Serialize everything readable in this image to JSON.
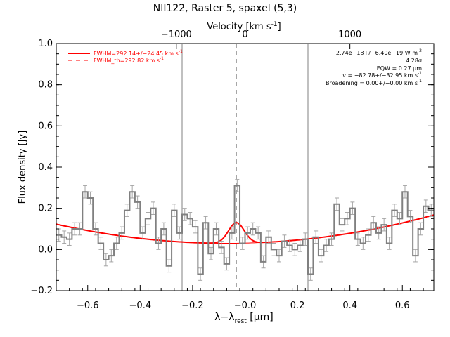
{
  "chart_data": {
    "type": "line",
    "title": "NII122, Raster 5, spaxel (5,3)",
    "xlabel_main": "λ−λ",
    "xlabel_sub": "rest",
    "xlabel_unit": " [μm]",
    "ylabel": "Flux density [Jy]",
    "top_axis_label": "Velocity [km s",
    "top_axis_sup": "-1",
    "top_axis_close": "]",
    "xlim": [
      -0.72,
      0.72
    ],
    "ylim": [
      -0.2,
      1.0
    ],
    "x_ticks": [
      {
        "value": -0.6,
        "label": "−0.6"
      },
      {
        "value": -0.4,
        "label": "−0.4"
      },
      {
        "value": -0.2,
        "label": "−0.2"
      },
      {
        "value": 0.0,
        "label": "−0.0"
      },
      {
        "value": 0.2,
        "label": "0.2"
      },
      {
        "value": 0.4,
        "label": "0.4"
      },
      {
        "value": 0.6,
        "label": "0.6"
      }
    ],
    "y_ticks": [
      {
        "value": -0.2,
        "label": "−0.2"
      },
      {
        "value": 0.0,
        "label": "0.0"
      },
      {
        "value": 0.2,
        "label": "0.2"
      },
      {
        "value": 0.4,
        "label": "0.4"
      },
      {
        "value": 0.6,
        "label": "0.6"
      },
      {
        "value": 0.8,
        "label": "0.8"
      },
      {
        "value": 1.0,
        "label": "1.0"
      }
    ],
    "top_ticks": [
      {
        "x": -0.262,
        "label": "−1000"
      },
      {
        "x": 0.0,
        "label": "0"
      },
      {
        "x": 0.4,
        "label": "1000"
      }
    ],
    "vertical_lines": [
      -0.24,
      0.0,
      0.24
    ],
    "line_center": -0.033,
    "spectrum": {
      "x": [
        -0.71,
        -0.69,
        -0.67,
        -0.65,
        -0.63,
        -0.61,
        -0.59,
        -0.57,
        -0.55,
        -0.53,
        -0.51,
        -0.49,
        -0.47,
        -0.45,
        -0.43,
        -0.41,
        -0.39,
        -0.37,
        -0.35,
        -0.33,
        -0.31,
        -0.29,
        -0.27,
        -0.25,
        -0.23,
        -0.21,
        -0.19,
        -0.17,
        -0.15,
        -0.13,
        -0.11,
        -0.09,
        -0.07,
        -0.05,
        -0.03,
        -0.01,
        0.01,
        0.03,
        0.05,
        0.07,
        0.09,
        0.11,
        0.13,
        0.15,
        0.17,
        0.19,
        0.21,
        0.23,
        0.25,
        0.27,
        0.29,
        0.31,
        0.33,
        0.35,
        0.37,
        0.39,
        0.41,
        0.43,
        0.45,
        0.47,
        0.49,
        0.51,
        0.53,
        0.55,
        0.57,
        0.59,
        0.61,
        0.63,
        0.65,
        0.67,
        0.69,
        0.71
      ],
      "y": [
        0.07,
        0.06,
        0.05,
        0.1,
        0.1,
        0.28,
        0.25,
        0.1,
        0.03,
        -0.05,
        -0.03,
        0.03,
        0.08,
        0.19,
        0.28,
        0.23,
        0.08,
        0.15,
        0.2,
        0.03,
        0.1,
        -0.08,
        0.19,
        0.08,
        0.17,
        0.15,
        0.11,
        -0.12,
        0.13,
        -0.02,
        0.1,
        0.01,
        -0.07,
        0.08,
        0.31,
        0.03,
        0.08,
        0.1,
        0.08,
        -0.06,
        0.06,
        0.0,
        -0.03,
        0.04,
        0.02,
        0.0,
        0.02,
        0.05,
        -0.12,
        0.06,
        -0.03,
        0.02,
        0.05,
        0.22,
        0.12,
        0.15,
        0.2,
        0.05,
        0.03,
        0.07,
        0.13,
        0.08,
        0.12,
        0.03,
        0.19,
        0.15,
        0.28,
        0.16,
        -0.03,
        0.1,
        0.21,
        0.19
      ],
      "err": 0.03
    },
    "fit_continuum": {
      "c0": 0.03,
      "c2": 0.22,
      "x0": -0.07
    },
    "fit_line": {
      "amplitude": 0.1,
      "center": -0.033,
      "sigma": 0.03
    },
    "legend": [
      {
        "label": "FWHM=292.14+/−24.45 km s",
        "sup": "-1",
        "style": "solid",
        "color": "#ff0000"
      },
      {
        "label": "FWHM_th=292.82 km s",
        "sup": "-1",
        "style": "dashed",
        "color": "#ff0000"
      }
    ],
    "annotations": {
      "flux": "2.74e−18+/−6.40e−19 W m",
      "flux_sup": "-2",
      "sigma": "4.28σ",
      "eqw": "EQW = 0.27 μm",
      "velocity": "v = −82.78+/−32.95 km s",
      "velocity_sup": "-1",
      "broadening": "Broadening = 0.00+/−0.00 km s",
      "broadening_sup": "-1"
    },
    "colors": {
      "spectrum": "#808080",
      "error": "#a6a6a6",
      "fit": "#ff0000",
      "vline": "#808080",
      "axis": "#000000"
    }
  }
}
